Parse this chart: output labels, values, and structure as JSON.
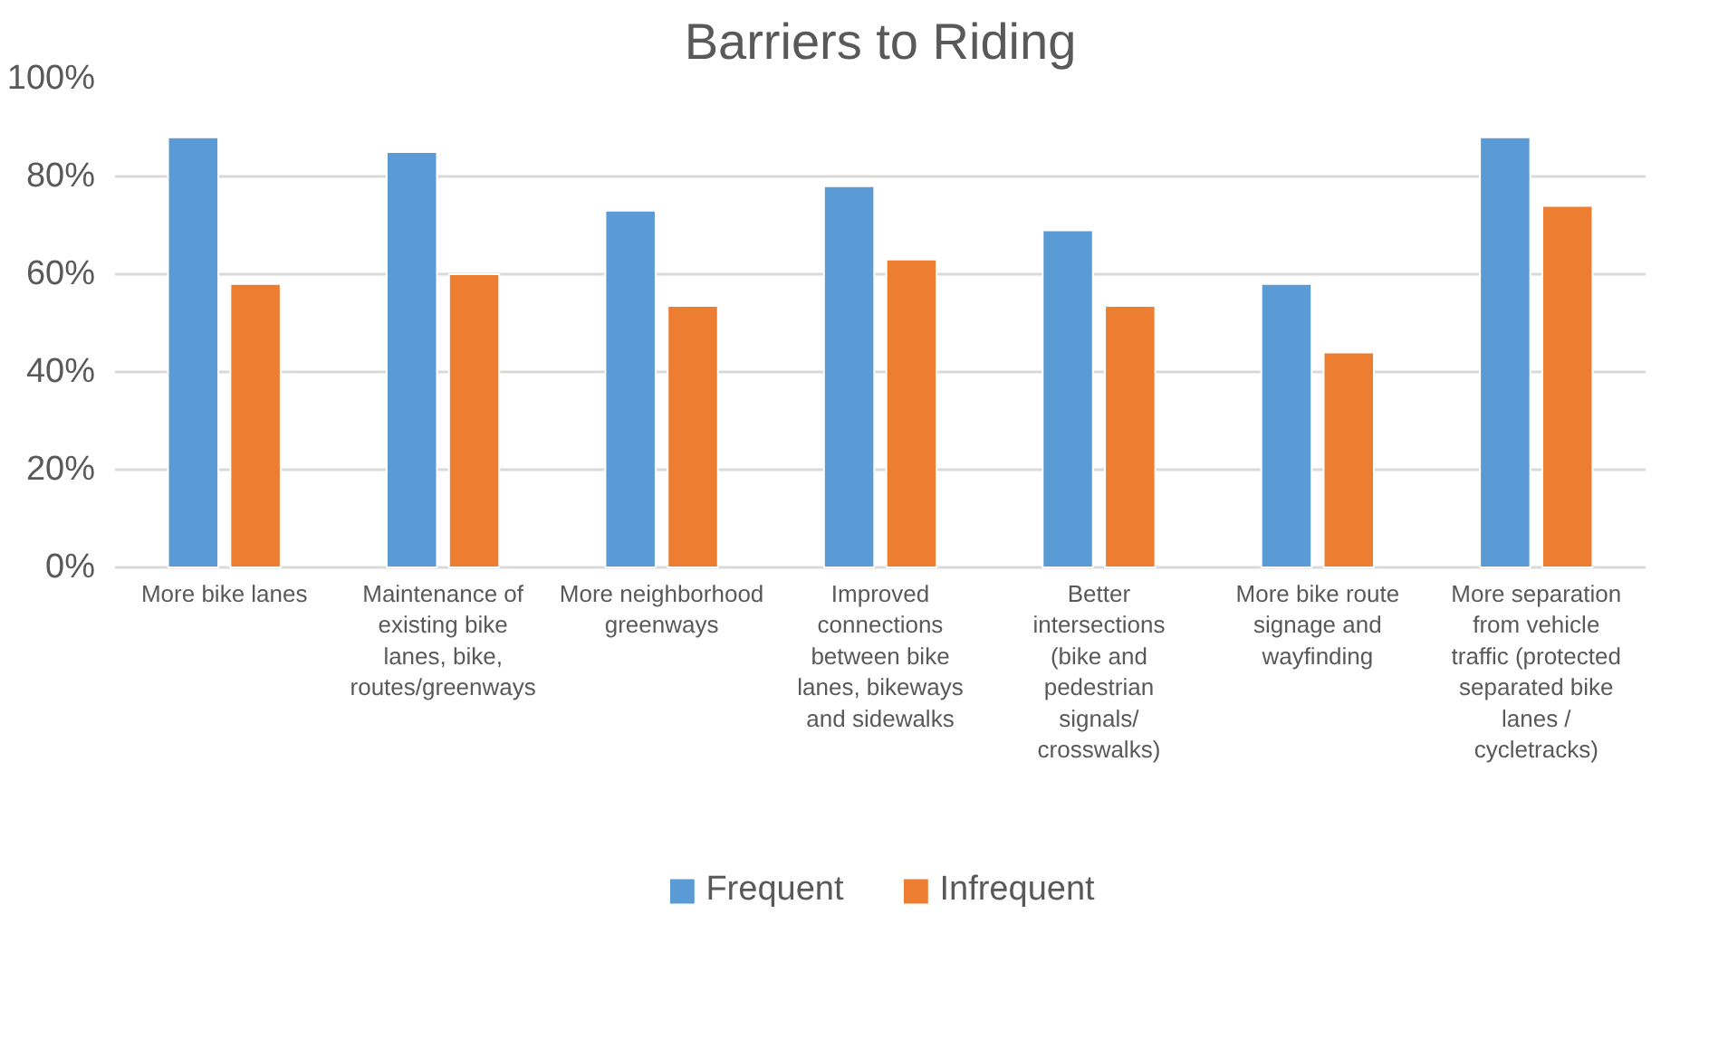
{
  "chart_data": {
    "type": "bar",
    "title": "Barriers to Riding",
    "categories": [
      "More bike lanes",
      "Maintenance of existing bike lanes, bike, routes/greenways",
      "More neighborhood greenways",
      "Improved connections between bike lanes, bikeways and sidewalks",
      "Better intersections (bike and pedestrian signals/ crosswalks)",
      "More bike route signage and wayfinding",
      "More separation from vehicle traffic (protected separated bike lanes / cycletracks)"
    ],
    "series": [
      {
        "name": "Frequent",
        "color": "#5b9bd5",
        "values": [
          88,
          85,
          73,
          78,
          69,
          58,
          88
        ]
      },
      {
        "name": "Infrequent",
        "color": "#ed7d31",
        "values": [
          58,
          60,
          53.5,
          63,
          53.5,
          44,
          74
        ]
      }
    ],
    "ylim": [
      0,
      100
    ],
    "yticks": [
      {
        "value": 0,
        "label": "0%"
      },
      {
        "value": 20,
        "label": "20%"
      },
      {
        "value": 40,
        "label": "40%"
      },
      {
        "value": 60,
        "label": "60%"
      },
      {
        "value": 80,
        "label": "80%"
      },
      {
        "value": 100,
        "label": "100%"
      }
    ],
    "grid": "y",
    "legend": "bottom"
  }
}
